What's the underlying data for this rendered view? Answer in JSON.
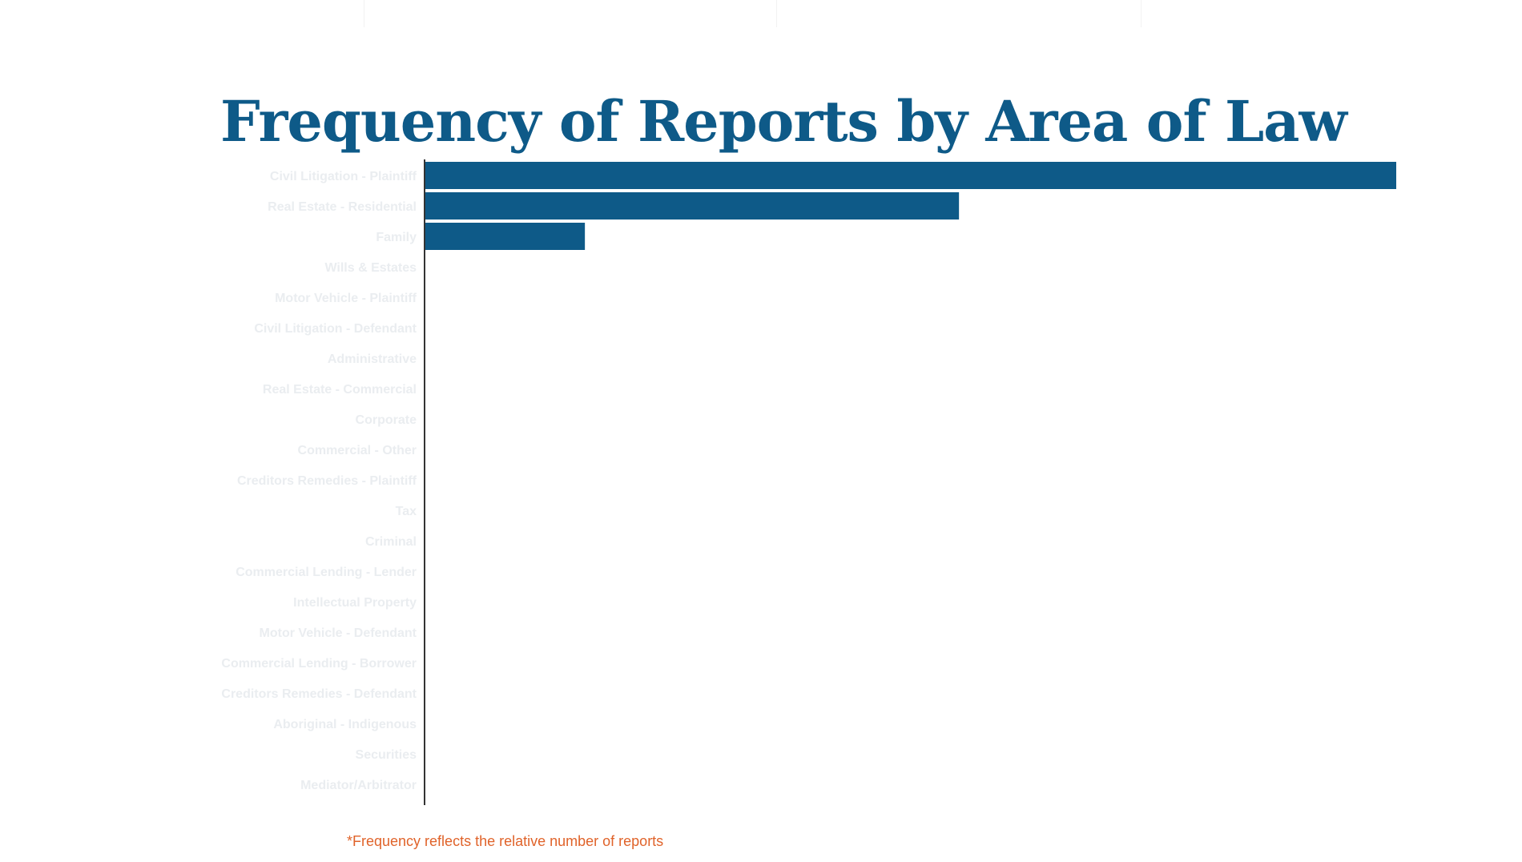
{
  "chart_data": {
    "type": "bar",
    "orientation": "horizontal",
    "title": "Frequency of Reports by Area of Law",
    "xlabel": "",
    "ylabel": "",
    "grid": false,
    "categories": [
      "Civil Litigation - Plaintiff",
      "Real Estate - Residential",
      "Family",
      "Wills & Estates",
      "Motor Vehicle - Plaintiff",
      "Civil Litigation - Defendant",
      "Administrative",
      "Real Estate - Commercial",
      "Corporate",
      "Commercial - Other",
      "Creditors Remedies - Plaintiff",
      "Tax",
      "Criminal",
      "Commercial Lending - Lender",
      "Intellectual Property",
      "Motor Vehicle - Defendant",
      "Commercial Lending - Borrower",
      "Creditors Remedies - Defendant",
      "Aboriginal - Indigenous",
      "Securities",
      "Mediator/Arbitrator"
    ],
    "values": [
      100,
      55,
      16.5,
      0,
      0,
      0,
      0,
      0,
      0,
      0,
      0,
      0,
      0,
      0,
      0,
      0,
      0,
      0,
      0,
      0,
      0
    ],
    "xlim": [
      0,
      100
    ],
    "colors": {
      "bar": "#0e5a88",
      "title": "#0e5a88",
      "category_label": "#eaedf0",
      "axis": "#333333",
      "footnote": "#e0632a"
    }
  },
  "footnote": "*Frequency reflects the relative number of reports"
}
